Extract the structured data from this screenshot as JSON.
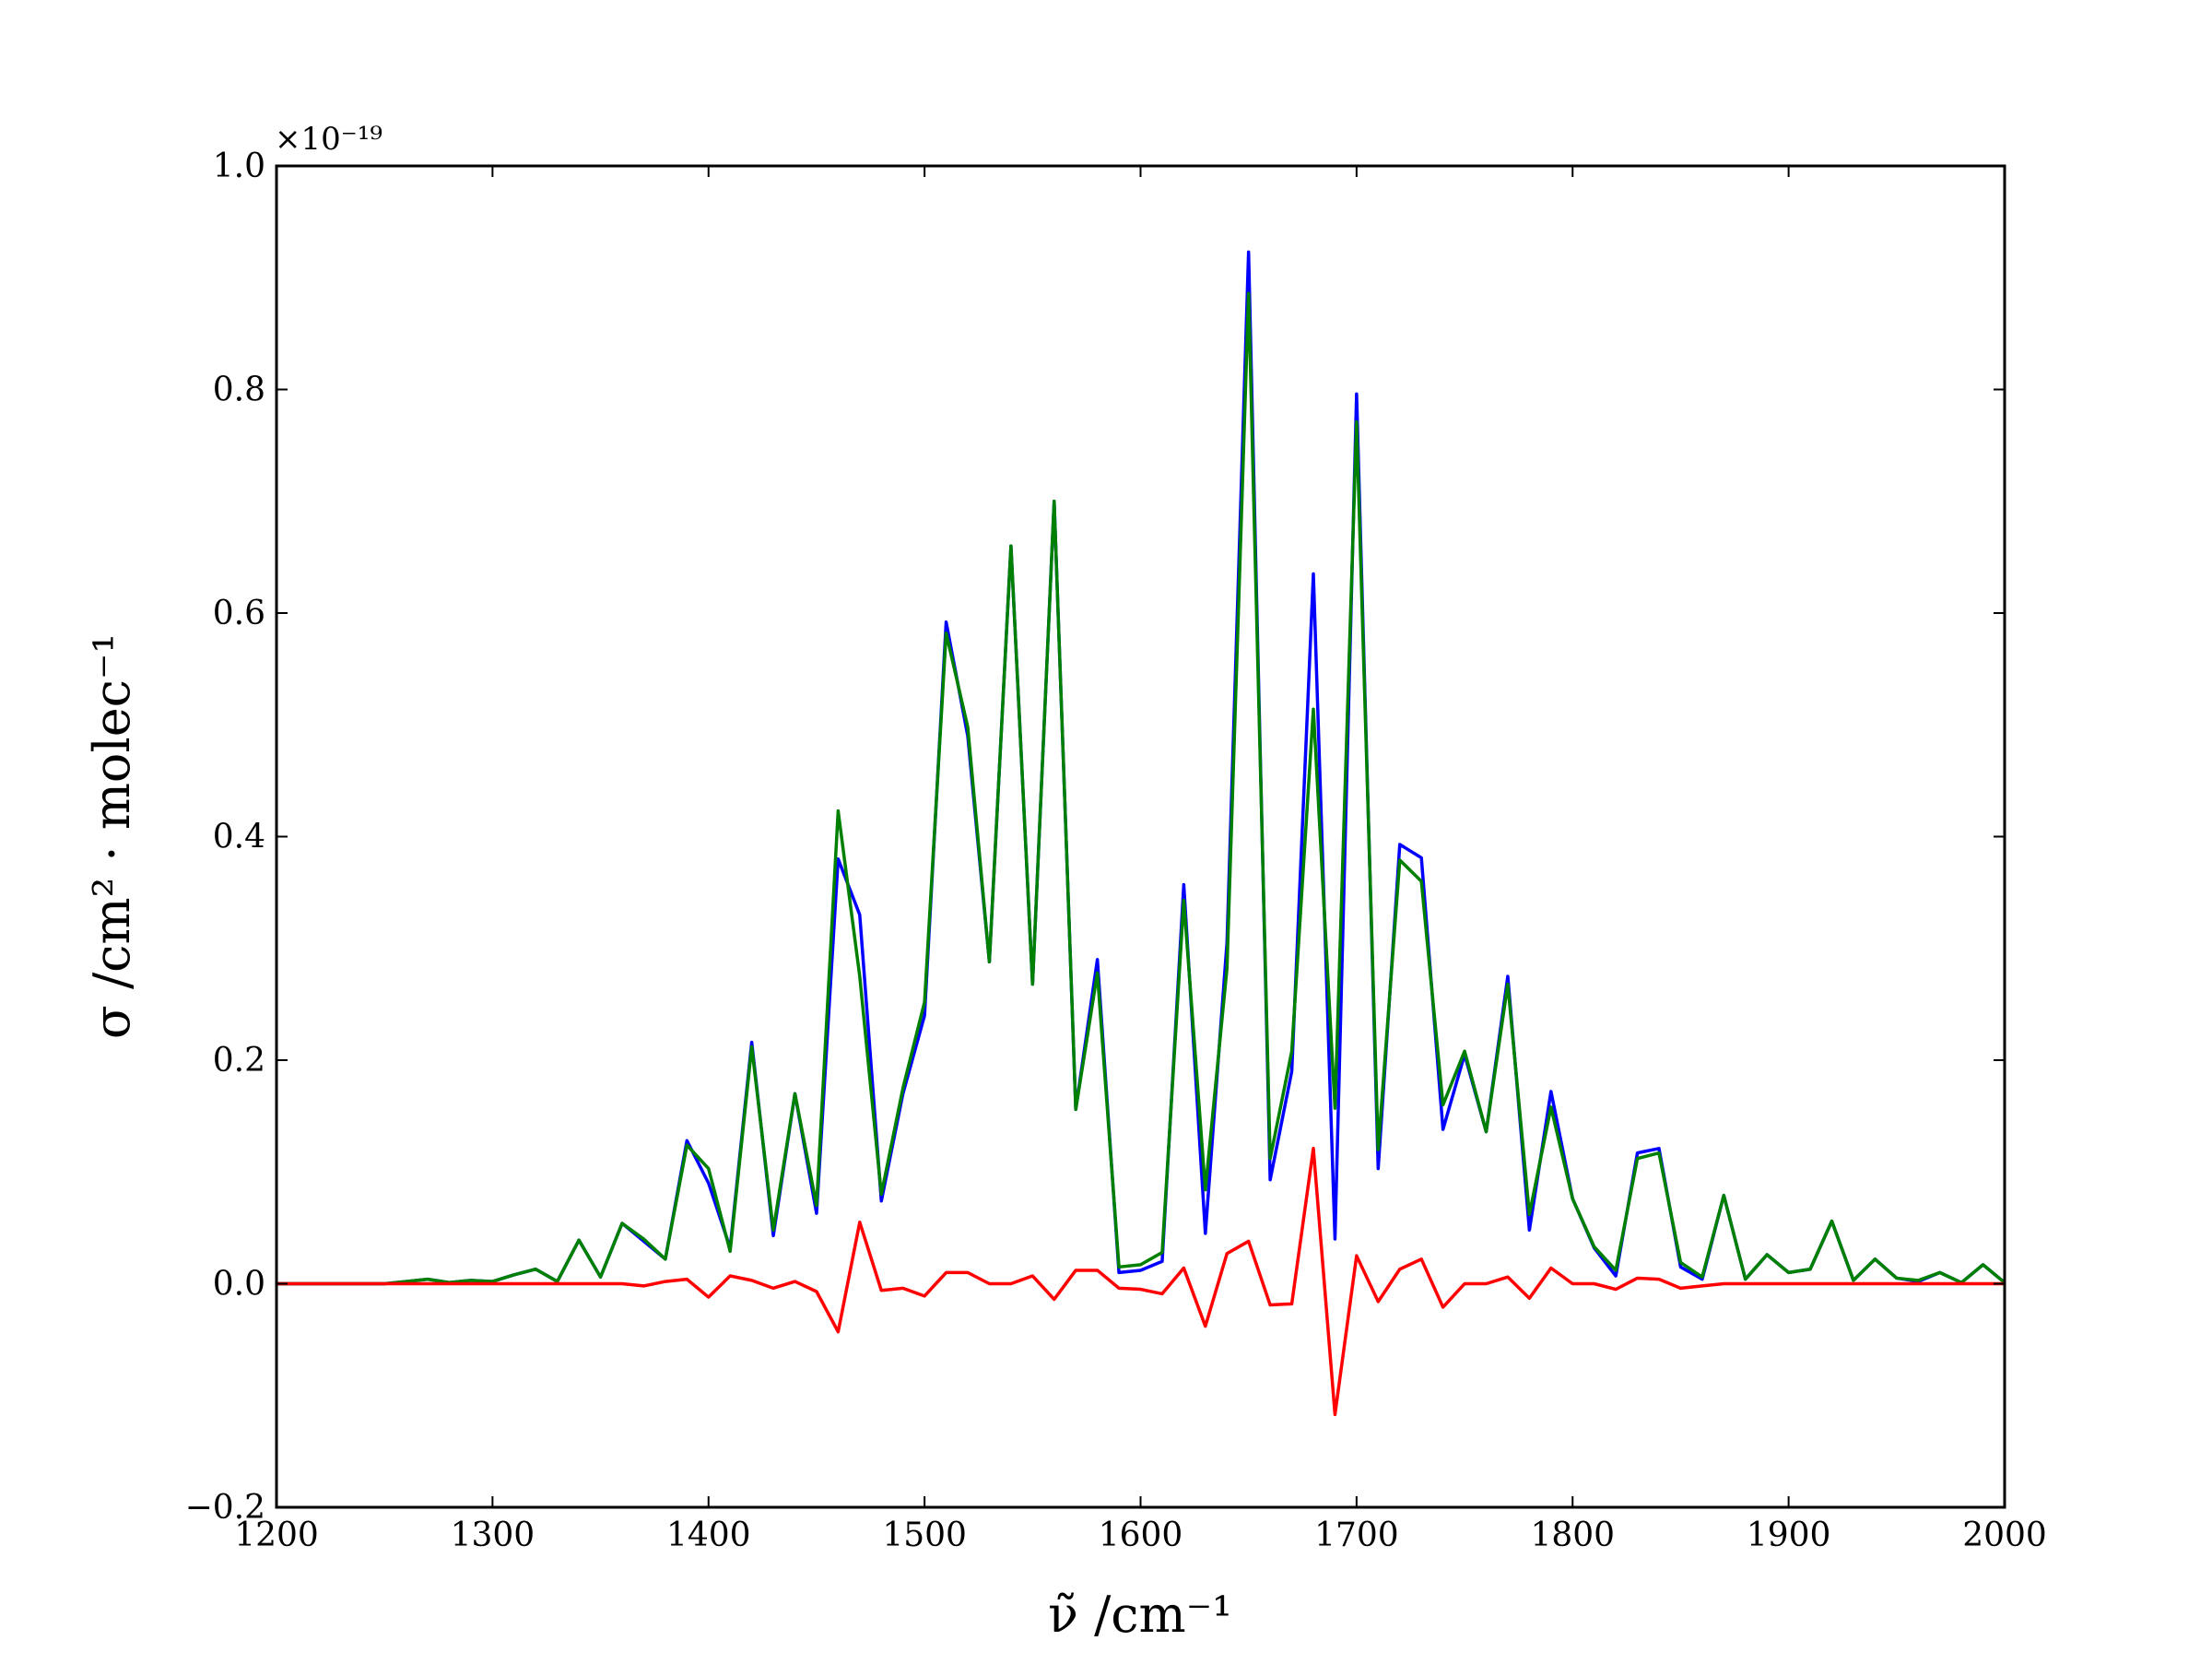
{
  "chart_data": {
    "type": "line",
    "title": "",
    "xlabel": "ν̃ /cm⁻¹",
    "ylabel": "σ /cm² · molec⁻¹",
    "y_scale_label": "×10⁻¹⁹",
    "xlim": [
      1200,
      2000
    ],
    "ylim": [
      -0.2,
      1.0
    ],
    "x_ticks": [
      1200,
      1300,
      1400,
      1500,
      1600,
      1700,
      1800,
      1900,
      2000
    ],
    "x_tick_labels": [
      "1200",
      "1300",
      "1400",
      "1500",
      "1600",
      "1700",
      "1800",
      "1900",
      "2000"
    ],
    "y_ticks": [
      -0.2,
      0.0,
      0.2,
      0.4,
      0.6,
      0.8,
      1.0
    ],
    "y_tick_labels": [
      "−0.2",
      "0.0",
      "0.2",
      "0.4",
      "0.6",
      "0.8",
      "1.0"
    ],
    "grid": false,
    "legend": false,
    "x": [
      1200,
      1210,
      1220,
      1230,
      1240,
      1250,
      1260,
      1270,
      1280,
      1290,
      1300,
      1310,
      1320,
      1330,
      1340,
      1350,
      1360,
      1370,
      1380,
      1390,
      1400,
      1410,
      1420,
      1430,
      1440,
      1450,
      1460,
      1470,
      1480,
      1490,
      1500,
      1510,
      1520,
      1530,
      1540,
      1550,
      1560,
      1570,
      1580,
      1590,
      1600,
      1610,
      1620,
      1630,
      1640,
      1650,
      1660,
      1670,
      1680,
      1690,
      1700,
      1710,
      1720,
      1730,
      1740,
      1750,
      1760,
      1770,
      1780,
      1790,
      1800,
      1810,
      1820,
      1830,
      1840,
      1850,
      1860,
      1870,
      1880,
      1890,
      1900,
      1910,
      1920,
      1930,
      1940,
      1950,
      1960,
      1970,
      1980,
      1990,
      2000
    ],
    "series": [
      {
        "color": "#0000ff",
        "values": [
          0.0,
          0.0,
          0.0,
          0.0,
          0.0,
          0.0,
          0.002,
          0.004,
          0.001,
          0.003,
          0.002,
          0.008,
          0.013,
          0.002,
          0.039,
          0.006,
          0.054,
          0.038,
          0.022,
          0.128,
          0.09,
          0.032,
          0.216,
          0.043,
          0.17,
          0.063,
          0.38,
          0.33,
          0.074,
          0.17,
          0.24,
          0.592,
          0.49,
          0.288,
          0.66,
          0.268,
          0.7,
          0.156,
          0.29,
          0.01,
          0.012,
          0.02,
          0.357,
          0.045,
          0.305,
          0.923,
          0.093,
          0.19,
          0.635,
          0.04,
          0.796,
          0.103,
          0.393,
          0.381,
          0.138,
          0.205,
          0.136,
          0.275,
          0.048,
          0.172,
          0.076,
          0.032,
          0.007,
          0.117,
          0.121,
          0.015,
          0.004,
          0.079,
          0.004,
          0.026,
          0.01,
          0.013,
          0.056,
          0.003,
          0.022,
          0.005,
          0.002,
          0.01,
          0.001,
          0.017,
          0.001
        ]
      },
      {
        "color": "#008000",
        "values": [
          0.0,
          0.0,
          0.0,
          0.0,
          0.0,
          0.0,
          0.002,
          0.004,
          0.001,
          0.003,
          0.002,
          0.008,
          0.013,
          0.002,
          0.039,
          0.006,
          0.054,
          0.04,
          0.022,
          0.124,
          0.103,
          0.029,
          0.212,
          0.048,
          0.17,
          0.07,
          0.423,
          0.275,
          0.08,
          0.175,
          0.252,
          0.582,
          0.498,
          0.288,
          0.66,
          0.268,
          0.7,
          0.156,
          0.278,
          0.015,
          0.017,
          0.028,
          0.343,
          0.084,
          0.282,
          0.886,
          0.112,
          0.208,
          0.514,
          0.157,
          0.771,
          0.12,
          0.379,
          0.36,
          0.16,
          0.208,
          0.136,
          0.268,
          0.062,
          0.158,
          0.076,
          0.033,
          0.012,
          0.112,
          0.117,
          0.019,
          0.006,
          0.079,
          0.004,
          0.026,
          0.01,
          0.013,
          0.056,
          0.003,
          0.022,
          0.005,
          0.003,
          0.01,
          0.001,
          0.017,
          0.001
        ]
      },
      {
        "color": "#ff0000",
        "values": [
          0.0,
          0.0,
          0.0,
          0.0,
          0.0,
          0.0,
          0.0,
          0.0,
          0.0,
          0.0,
          0.0,
          0.0,
          0.0,
          0.0,
          0.0,
          0.0,
          0.0,
          -0.002,
          0.002,
          0.004,
          -0.012,
          0.007,
          0.003,
          -0.004,
          0.002,
          -0.007,
          -0.043,
          0.055,
          -0.006,
          -0.004,
          -0.011,
          0.01,
          0.01,
          0.0,
          0.0,
          0.007,
          -0.014,
          0.012,
          0.012,
          -0.004,
          -0.005,
          -0.009,
          0.014,
          -0.038,
          0.027,
          0.038,
          -0.019,
          -0.018,
          0.121,
          -0.117,
          0.025,
          -0.016,
          0.013,
          0.022,
          -0.021,
          0.0,
          0.0,
          0.006,
          -0.013,
          0.014,
          0.0,
          0.0,
          -0.005,
          0.005,
          0.004,
          -0.004,
          -0.002,
          0.0,
          0.0,
          0.0,
          0.0,
          0.0,
          0.0,
          0.0,
          0.0,
          0.0,
          0.0,
          0.0,
          0.0,
          0.0,
          0.0
        ]
      }
    ]
  }
}
